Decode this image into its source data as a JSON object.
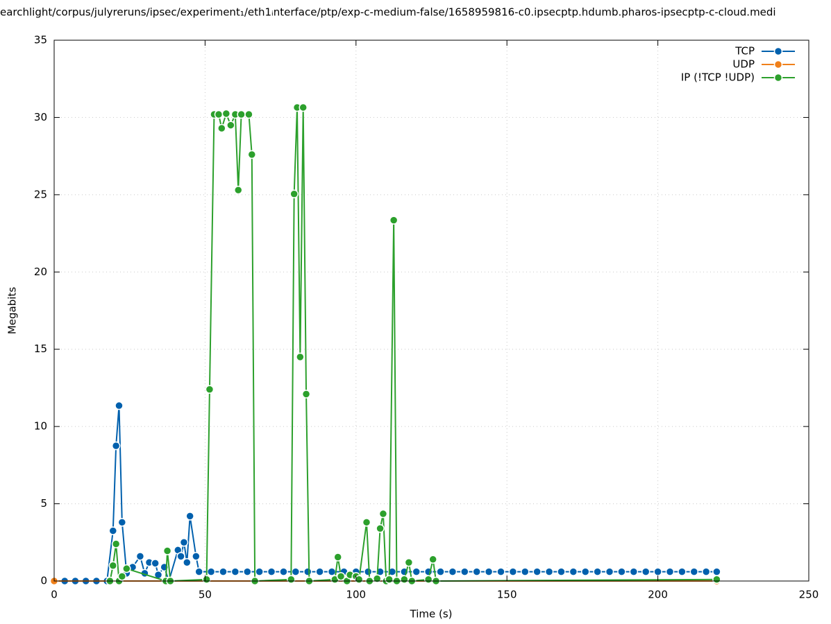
{
  "chart_data": {
    "type": "line",
    "title": "earchlight/corpus/julyreruns/ipsec/experiment₁/eth1ᵢnterface/ptp/exp-c-medium-false/1658959816-c0.ipsecptp.hdumb.pharos-ipsecptp-c-cloud.medi",
    "x_label": "Time (s)",
    "y_label": "Megabits",
    "xlim": [
      0,
      250
    ],
    "ylim": [
      0,
      35
    ],
    "xticks": [
      0,
      50,
      100,
      150,
      200,
      250
    ],
    "yticks": [
      0,
      5,
      10,
      15,
      20,
      25,
      30,
      35
    ],
    "grid": true,
    "legend": "top-right",
    "series": [
      {
        "name": "TCP",
        "color": "#0060ad",
        "x": [
          0,
          3.5,
          7,
          10.5,
          14,
          17.5,
          19.5,
          20.5,
          21.5,
          22.5,
          24,
          26,
          28.5,
          30,
          31.5,
          33.5,
          34.5,
          36.5,
          38,
          41,
          42,
          43,
          44,
          45,
          47,
          48,
          52,
          56,
          60,
          64,
          68,
          72,
          76,
          80,
          84,
          88,
          92,
          96,
          100,
          104,
          108,
          112,
          116,
          120,
          124,
          128,
          132,
          136,
          140,
          144,
          148,
          152,
          156,
          160,
          164,
          168,
          172,
          176,
          180,
          184,
          188,
          192,
          196,
          200,
          204,
          208,
          212,
          216,
          219.5
        ],
        "values": [
          0,
          0,
          0,
          0,
          0,
          0,
          3.25,
          8.75,
          11.35,
          3.8,
          0.5,
          0.9,
          1.6,
          0.5,
          1.2,
          1.15,
          0.4,
          0.9,
          0,
          2.0,
          1.6,
          2.5,
          1.2,
          4.2,
          1.6,
          0.6,
          0.6,
          0.6,
          0.6,
          0.6,
          0.6,
          0.6,
          0.6,
          0.6,
          0.6,
          0.6,
          0.6,
          0.6,
          0.6,
          0.6,
          0.6,
          0.6,
          0.6,
          0.6,
          0.6,
          0.6,
          0.6,
          0.6,
          0.6,
          0.6,
          0.6,
          0.6,
          0.6,
          0.6,
          0.6,
          0.6,
          0.6,
          0.6,
          0.6,
          0.6,
          0.6,
          0.6,
          0.6,
          0.6,
          0.6,
          0.6,
          0.6,
          0.6,
          0.6
        ]
      },
      {
        "name": "UDP",
        "color": "#f0801a",
        "x": [
          0,
          219.5
        ],
        "values": [
          0,
          0
        ]
      },
      {
        "name": "IP (!TCP  !UDP)",
        "color": "#2ca02c",
        "x": [
          18.5,
          19.5,
          20.5,
          21.5,
          22.5,
          24,
          37,
          37.5,
          38.5,
          50.5,
          51.5,
          53,
          54.5,
          55.5,
          57,
          58.5,
          60,
          61,
          62,
          64.5,
          65.5,
          66.5,
          78.5,
          79.5,
          80.5,
          81.5,
          82.5,
          83.5,
          84.5,
          93,
          94,
          95,
          97,
          98,
          100,
          101,
          103.5,
          104.5,
          107,
          108,
          109,
          110,
          111,
          112.5,
          113.5,
          116,
          117.5,
          118.5,
          124,
          125.5,
          126.5,
          219.5
        ],
        "values": [
          0,
          1.0,
          2.4,
          0,
          0.3,
          0.8,
          0,
          1.95,
          0,
          0.1,
          12.4,
          30.2,
          30.2,
          29.3,
          30.25,
          29.5,
          30.2,
          25.3,
          30.2,
          30.2,
          27.6,
          0,
          0.1,
          25.05,
          30.65,
          14.5,
          30.65,
          12.1,
          0,
          0.1,
          1.55,
          0.3,
          0,
          0.4,
          0.3,
          0.1,
          3.8,
          0,
          0.15,
          3.4,
          4.35,
          0,
          0.1,
          23.35,
          0,
          0.1,
          1.2,
          0,
          0.1,
          1.4,
          0,
          0.1
        ]
      }
    ]
  }
}
